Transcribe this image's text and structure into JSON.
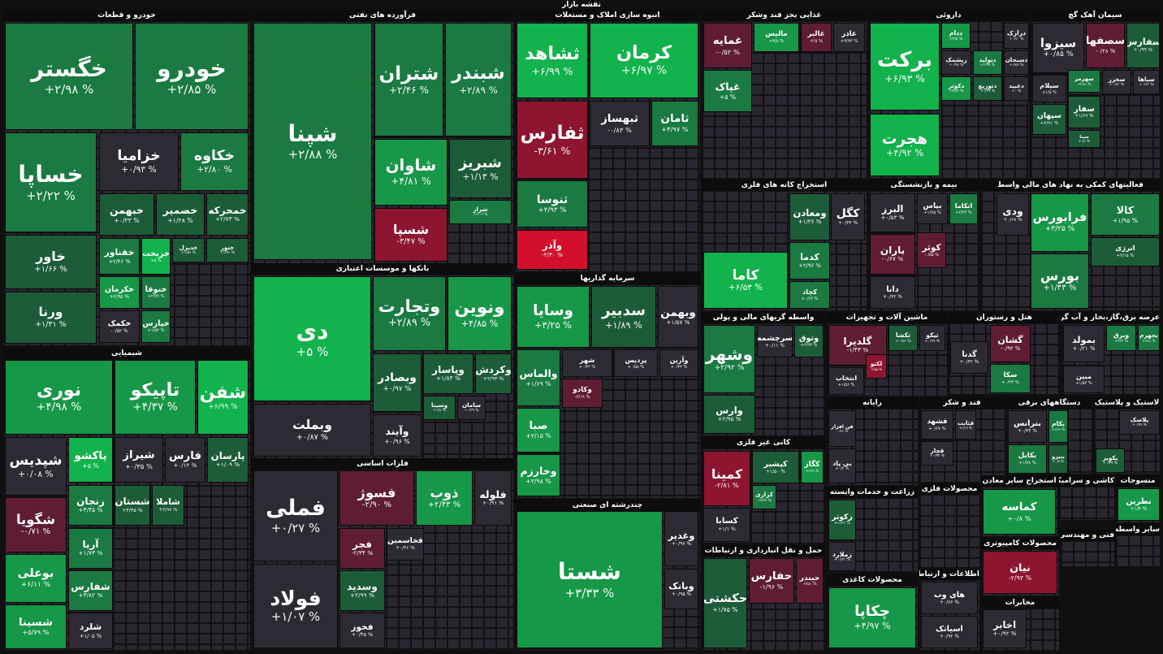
{
  "title": "نقشه بازار",
  "sectors": [
    {
      "title": "خودرو و قطعات",
      "tiles": [
        {
          "name": "خگستر",
          "change": "+۲/۹۸ %"
        },
        {
          "name": "خودرو",
          "change": "+۲/۸۵ %"
        },
        {
          "name": "خساپا",
          "change": "+۲/۲۲ %"
        },
        {
          "name": "خزامیا",
          "change": "+۰/۹۳ %"
        },
        {
          "name": "خکاوه",
          "change": "+۲/۸۰ %"
        },
        {
          "name": "خبهمن",
          "change": "+۰/۳۳ %"
        },
        {
          "name": "خصمیر",
          "change": "+۱/۲۸ %"
        },
        {
          "name": "خمحرکه",
          "change": "+۲/۷۳ %"
        },
        {
          "name": "خاور",
          "change": "+۱/۶۶ %"
        },
        {
          "name": "ورنا",
          "change": "+۱/۳۱ %"
        },
        {
          "name": "خفناور",
          "change": "+۲/۴۶ %"
        },
        {
          "name": "خریخت",
          "change": "+۵ %"
        },
        {
          "name": "خدیزل",
          "change": "+۱/۵۶ %"
        },
        {
          "name": "ختور",
          "change": "+۱/۹۱ %"
        },
        {
          "name": "خکرمان",
          "change": "+۲/۹۵ %"
        },
        {
          "name": "ختوقا",
          "change": "+۲/۹۹ %"
        },
        {
          "name": "خکمک",
          "change": "-۰/۵۲ %"
        },
        {
          "name": "خپارس",
          "change": "+۱/۵۳ %"
        }
      ]
    },
    {
      "title": "شیمیایی",
      "tiles": [
        {
          "name": "نوری",
          "change": "+۴/۹۸ %"
        },
        {
          "name": "تاپیکو",
          "change": "+۴/۳۷ %"
        },
        {
          "name": "شفن",
          "change": "+۶/۹۹ %"
        },
        {
          "name": "شپدیس",
          "change": "+۰/۰۸ %"
        },
        {
          "name": "پاکشو",
          "change": "+۵ %"
        },
        {
          "name": "شیراز",
          "change": "+۰/۳۵ %"
        },
        {
          "name": "فارس",
          "change": "+۰/۱۲ %"
        },
        {
          "name": "پارسان",
          "change": "+۱/۰۹ %"
        },
        {
          "name": "شگویا",
          "change": "-۰/۷۱ %"
        },
        {
          "name": "زنجان",
          "change": "+۴/۴۵ %"
        },
        {
          "name": "شستان",
          "change": "+۴/۴۵ %"
        },
        {
          "name": "شاملا",
          "change": "+۲/۹۷ %"
        },
        {
          "name": "بوعلی",
          "change": "+۶/۱۱ %"
        },
        {
          "name": "شسینا",
          "change": "+۵/۷۹ %"
        },
        {
          "name": "آریا",
          "change": "+۱/۷۳ %"
        },
        {
          "name": "شفارس",
          "change": "+۳/۸۲ %"
        },
        {
          "name": "شلرد",
          "change": "+۱/۰۵ %"
        }
      ]
    },
    {
      "title": "فرآورده های نفتی",
      "tiles": [
        {
          "name": "شپنا",
          "change": "+۲/۸۸ %"
        },
        {
          "name": "شتران",
          "change": "+۲/۴۶ %"
        },
        {
          "name": "شبندر",
          "change": "+۲/۸۹ %"
        },
        {
          "name": "شاوان",
          "change": "+۴/۸۱ %"
        },
        {
          "name": "شبریز",
          "change": "+۱/۱۳ %"
        },
        {
          "name": "شسپا",
          "change": "-۳/۴۷ %"
        },
        {
          "name": "شراز",
          "change": "+۳/۰۳ %"
        }
      ]
    },
    {
      "title": "بانکها و موسسات اعتباری",
      "tiles": [
        {
          "name": "دی",
          "change": "+۵ %"
        },
        {
          "name": "وبملت",
          "change": "+۰/۸۷ %"
        },
        {
          "name": "وتجارت",
          "change": "+۲/۸۹ %"
        },
        {
          "name": "ونوین",
          "change": "+۴/۸۵ %"
        },
        {
          "name": "وبصادر",
          "change": "+۰/۹۷ %"
        },
        {
          "name": "وپاسار",
          "change": "+۱/۸۴ %"
        },
        {
          "name": "وکردش",
          "change": "+۲/۹۳ %"
        },
        {
          "name": "وآیند",
          "change": "+۰/۹۶ %"
        },
        {
          "name": "وسینا",
          "change": "+۱/۸ %"
        },
        {
          "name": "سامان",
          "change": "+۰/۳۹ %"
        }
      ]
    },
    {
      "title": "فلزات اساسی",
      "tiles": [
        {
          "name": "فملی",
          "change": "+۰/۲۷ %"
        },
        {
          "name": "فولاد",
          "change": "+۱/۰۷ %"
        },
        {
          "name": "فسوژ",
          "change": "-۲/۹۰ %"
        },
        {
          "name": "ذوب",
          "change": "+۲/۴۳ %"
        },
        {
          "name": "فلوله",
          "change": "+۰/۹۱ %"
        },
        {
          "name": "فجر",
          "change": "-۲/۳۴ %"
        },
        {
          "name": "فخاسمین",
          "change": "+۰/۳۶ %"
        },
        {
          "name": "وسدید",
          "change": "+۲/۹۹ %"
        },
        {
          "name": "فخوز",
          "change": "+۰/۳۵ %"
        }
      ]
    },
    {
      "title": "انبوه سازی املاک و مستغلات",
      "tiles": [
        {
          "name": "ثشاهد",
          "change": "+۶/۹۹ %"
        },
        {
          "name": "کرمان",
          "change": "+۶/۹۷ %"
        },
        {
          "name": "ثفارس",
          "change": "-۳/۶۱ %"
        },
        {
          "name": "ثبهساز",
          "change": "-۰/۸۳ %"
        },
        {
          "name": "ثامان",
          "change": "+۴/۹۷ %"
        },
        {
          "name": "ثنوسا",
          "change": "+۴/۹۳ %"
        },
        {
          "name": "وآذر",
          "change": "-۴/۳۰ %"
        }
      ]
    },
    {
      "title": "سرمایه گذاریها",
      "tiles": [
        {
          "name": "وسایا",
          "change": "+۳/۲۵ %"
        },
        {
          "name": "سدبیر",
          "change": "+۱/۸۹ %"
        },
        {
          "name": "وبهمن",
          "change": "+۱/۵۷ %"
        },
        {
          "name": "والماس",
          "change": "+۱/۶۹ %"
        },
        {
          "name": "شهر",
          "change": "+۰/۳۲ %"
        },
        {
          "name": "پردیس",
          "change": "+۰/۵۸ %"
        },
        {
          "name": "وآرین",
          "change": "+۰/۳۳ %"
        },
        {
          "name": "صبا",
          "change": "+۲/۱۵ %"
        },
        {
          "name": "وکادو",
          "change": "-۲/۱۹ %"
        },
        {
          "name": "وخارزم",
          "change": "+۳/۹۸ %"
        }
      ]
    },
    {
      "title": "چندرشته ای صنعتی",
      "tiles": [
        {
          "name": "شستا",
          "change": "+۳/۳۳ %"
        },
        {
          "name": "وغدیر",
          "change": "+۰/۹۷ %"
        },
        {
          "name": "وبانک",
          "change": "+۰/۹۵ %"
        }
      ]
    },
    {
      "title": "غذایی بجز قند وشکر",
      "tiles": [
        {
          "name": "غمایه",
          "change": "-۰/۵۲ %"
        },
        {
          "name": "غپاک",
          "change": "+۵ %"
        },
        {
          "name": "مالیس",
          "change": "+۳/۸ %"
        },
        {
          "name": "غالبر",
          "change": "-۲/۸ %"
        },
        {
          "name": "غاذر",
          "change": "+۳/۹۳ %"
        }
      ]
    },
    {
      "title": "استخراج کانه های فلزی",
      "tiles": [
        {
          "name": "کاما",
          "change": "+۶/۵۳ %"
        },
        {
          "name": "ومعادن",
          "change": "+۱/۳۶ %"
        },
        {
          "name": "کگل",
          "change": "+۰/۳۳ %"
        },
        {
          "name": "کدما",
          "change": "+۲/۹۶ %"
        },
        {
          "name": "کچاد",
          "change": "+۰/۶۳ %"
        }
      ]
    },
    {
      "title": "واسطه گریهای مالی و پولی",
      "tiles": [
        {
          "name": "وشهر",
          "change": "+۲/۹۲ %"
        },
        {
          "name": "سرچشمه",
          "change": "+۰/۱۱ %"
        },
        {
          "name": "وثوق",
          "change": "+۲/۹۳ %"
        },
        {
          "name": "وارس",
          "change": "+۲/۹۵ %"
        }
      ]
    },
    {
      "title": "کانی غیر فلزی",
      "tiles": [
        {
          "name": "کمینا",
          "change": "-۲/۸۱ %"
        },
        {
          "name": "کپشیر",
          "change": "+۱/۵۰ %"
        },
        {
          "name": "کگاز",
          "change": "+۲/۳۹ %"
        },
        {
          "name": "کرازی",
          "change": "+۳/۳۳ %"
        },
        {
          "name": "کسابا",
          "change": "+۱/۱ %"
        }
      ]
    },
    {
      "title": "حمل و نقل انبارداری و ارتباطات",
      "tiles": [
        {
          "name": "حکشتی",
          "change": "+۱/۷۵ %"
        },
        {
          "name": "حفارس",
          "change": "-۱/۹۶ %"
        },
        {
          "name": "حبندر",
          "change": "-۲/۵۱ %"
        }
      ]
    },
    {
      "title": "ماشین آلات و تجهیزات",
      "tiles": [
        {
          "name": "گلدیرا",
          "change": "-۱/۴۳ %"
        },
        {
          "name": "تکشا",
          "change": "+۰/۸۶ %"
        },
        {
          "name": "تیکو",
          "change": "+۰/۹۹ %"
        },
        {
          "name": "انتخاب",
          "change": "+۱/۵۶ %"
        },
        {
          "name": "لکتو",
          "change": "-۲/۵۵ %"
        }
      ]
    },
    {
      "title": "رایانه",
      "tiles": [
        {
          "name": "فن افزار",
          "change": "-۰/۴۲ %"
        },
        {
          "name": "بی پاد",
          "change": "+۰/۴ %"
        }
      ]
    },
    {
      "title": "زراعت و خدمات وابسته",
      "tiles": [
        {
          "name": "زکوثر",
          "change": "+۱/۲۶ %"
        },
        {
          "name": "زملارد",
          "change": "+۰/۷۲ %"
        }
      ]
    },
    {
      "title": "محصولات کاغذی",
      "tiles": [
        {
          "name": "چکاپا",
          "change": "+۴/۹۷ %"
        }
      ]
    },
    {
      "title": "داروئی",
      "tiles": [
        {
          "name": "برکت",
          "change": "+۶/۹۳ %"
        },
        {
          "name": "هجرت",
          "change": "+۴/۹۲ %"
        },
        {
          "name": "ددام",
          "change": "+۲/۵ %"
        },
        {
          "name": "درازک",
          "change": "+۰/۷۰ %"
        },
        {
          "name": "ریشمک",
          "change": "+۰/۹۸ %"
        },
        {
          "name": "دتولید",
          "change": "+۲/۹۸ %"
        },
        {
          "name": "دسبحان",
          "change": "+۱/۵۶ %"
        },
        {
          "name": "دکوثر",
          "change": "+۴/۷۶ %"
        },
        {
          "name": "دتوزیع",
          "change": "+۱/۳۹ %"
        },
        {
          "name": "دعبید",
          "change": "+۰ %"
        }
      ]
    },
    {
      "title": "سیمان آهک گچ",
      "tiles": [
        {
          "name": "سیزوا",
          "change": "+۰/۸۵ %"
        },
        {
          "name": "سصفها",
          "change": "-۰/۲۸ %"
        },
        {
          "name": "سفارس",
          "change": "+۰/۹۹ %"
        },
        {
          "name": "سیلام",
          "change": "+۱/۵ %"
        },
        {
          "name": "سهرمز",
          "change": "+۲/۸۱ %"
        },
        {
          "name": "سخزر",
          "change": "+۰/۸۳ %"
        },
        {
          "name": "سیاها",
          "change": "+۰/۸۲ %"
        },
        {
          "name": "سپهان",
          "change": "+۲/۹۱ %"
        },
        {
          "name": "سفار",
          "change": "+۱/۶۹ %"
        },
        {
          "name": "سیتا",
          "change": "+۱/۲ %"
        }
      ]
    },
    {
      "title": "بیمه و بازنشستگی",
      "tiles": [
        {
          "name": "البرز",
          "change": "+۰/۵۳ %"
        },
        {
          "name": "بپاس",
          "change": "+۱/۷۵ %"
        },
        {
          "name": "اتکاما",
          "change": "+۲/۴۴ %"
        },
        {
          "name": "باران",
          "change": "-۰/۶۷ %"
        },
        {
          "name": "کوثر",
          "change": "-۰/۵۵ %"
        },
        {
          "name": "دانا",
          "change": "+۰/۳۲ %"
        }
      ]
    },
    {
      "title": "فعالیتهای کمکی به نهاد های مالی واسط",
      "tiles": [
        {
          "name": "ودی",
          "change": "+۰/۶۷ %"
        },
        {
          "name": "فرابورس",
          "change": "+۳/۲۵ %"
        },
        {
          "name": "کالا",
          "change": "+۱/۹۵ %"
        },
        {
          "name": "انرژی",
          "change": "+۲/۱۵ %"
        },
        {
          "name": "بورس",
          "change": "+۱/۴۳ %"
        }
      ]
    },
    {
      "title": "هتل و رستوران",
      "tiles": [
        {
          "name": "گدنا",
          "change": "+۰/۴۲ %"
        },
        {
          "name": "گشان",
          "change": "-۰/۹۳ %"
        },
        {
          "name": "سکا",
          "change": "+۰/۴۳ %"
        }
      ]
    },
    {
      "title": "عرضه برق،گاز،بخار و آب گرم",
      "tiles": [
        {
          "name": "بمولد",
          "change": "+۰/۲۱ %"
        },
        {
          "name": "وبرق",
          "change": "+۳/۳ %"
        },
        {
          "name": "بجهرم",
          "change": "+۲/۷۱ %"
        },
        {
          "name": "مبین",
          "change": "+۱/۵۴ %"
        }
      ]
    },
    {
      "title": "قند و شکر",
      "tiles": [
        {
          "name": "قشهد",
          "change": "+۰/۶۷ %"
        },
        {
          "name": "قثابت",
          "change": "+۲/۶۷ %"
        },
        {
          "name": "قچار",
          "change": "+۰/۹۴ %"
        }
      ]
    },
    {
      "title": "دستگاههای برقی",
      "tiles": [
        {
          "name": "بترانس",
          "change": "+۰/۴۴ %"
        },
        {
          "name": "بکام",
          "change": "+۲/۷۹ %"
        },
        {
          "name": "بکابل",
          "change": "+۱/۷۸ %"
        },
        {
          "name": "بنیرو",
          "change": "+۰/۵ %"
        }
      ]
    },
    {
      "title": "لاستیک و پلاستیک",
      "tiles": [
        {
          "name": "پلاسک",
          "change": "+۰/۴۷ %"
        },
        {
          "name": "پکویر",
          "change": "+۰/۴۹ %"
        }
      ]
    },
    {
      "title": "محصولات فلزی",
      "tiles": []
    },
    {
      "title": "استخراج سایر معادن",
      "tiles": [
        {
          "name": "کماسه",
          "change": "+۰/۸ %"
        }
      ]
    },
    {
      "title": "کاشی و سرامیک",
      "tiles": []
    },
    {
      "title": "منسوجات",
      "tiles": [
        {
          "name": "نطرین",
          "change": "+۱/۴ %"
        }
      ]
    },
    {
      "title": "محصولات کامپیوتری",
      "tiles": [
        {
          "name": "نیان",
          "change": "-۲/۹۳ %"
        }
      ]
    },
    {
      "title": "مخابرات",
      "tiles": [
        {
          "name": "اخابر",
          "change": "+۰/۹۲ %"
        }
      ]
    },
    {
      "title": "اطلاعات و ارتباطات",
      "tiles": [
        {
          "name": "های وب",
          "change": "+۰/۷۶ %"
        },
        {
          "name": "اسیاتک",
          "change": "+۰/۹۲ %"
        }
      ]
    },
    {
      "title": "فنی و مهندسی",
      "tiles": []
    },
    {
      "title": "سایر واسطه",
      "tiles": []
    }
  ]
}
